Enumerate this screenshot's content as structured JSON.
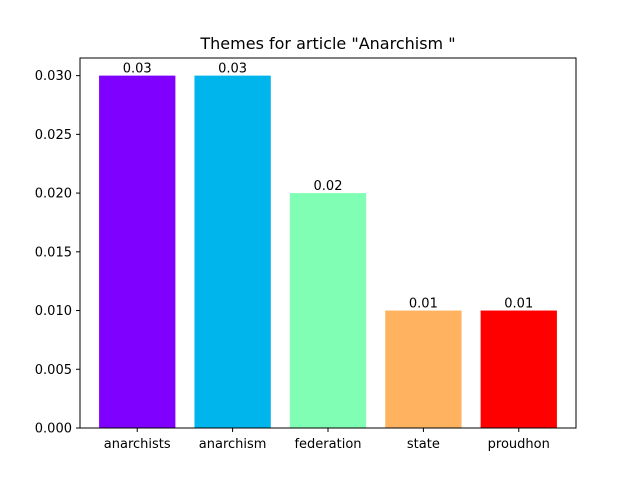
{
  "chart_data": {
    "type": "bar",
    "title": "Themes for article \"Anarchism \"",
    "xlabel": "",
    "ylabel": "",
    "categories": [
      "anarchists",
      "anarchism",
      "federation",
      "state",
      "proudhon"
    ],
    "values": [
      0.03,
      0.03,
      0.02,
      0.01,
      0.01
    ],
    "data_labels": [
      "0.03",
      "0.03",
      "0.02",
      "0.01",
      "0.01"
    ],
    "colors": [
      "#8000ff",
      "#00b4ec",
      "#80ffb4",
      "#ffb360",
      "#ff0000"
    ],
    "ylim": [
      0,
      0.0315
    ],
    "yticks": [
      0.0,
      0.005,
      0.01,
      0.015,
      0.02,
      0.025,
      0.03
    ],
    "ytick_labels": [
      "0.000",
      "0.005",
      "0.010",
      "0.015",
      "0.020",
      "0.025",
      "0.030"
    ],
    "grid": false,
    "legend": "none"
  }
}
